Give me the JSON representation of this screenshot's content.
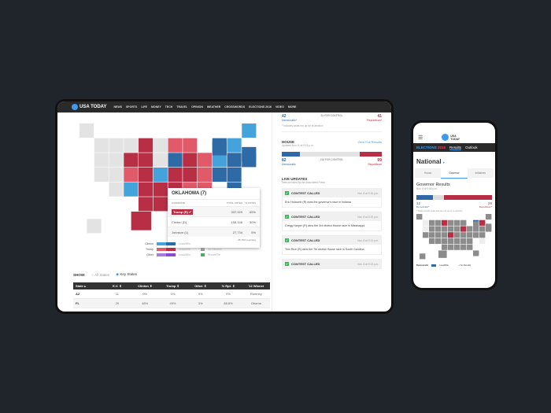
{
  "colors": {
    "trump_win": "#b72e45",
    "trump_lead": "#e05a6a",
    "clinton_win": "#2d6aa6",
    "clinton_lead": "#45a3dc",
    "none": "#e3e3e3",
    "other": "#8a4bd1",
    "runoff": "#3fb55d"
  },
  "nav": {
    "logo": "USA TODAY",
    "items": [
      "NEWS",
      "SPORTS",
      "LIFE",
      "MONEY",
      "TECH",
      "TRAVEL",
      "OPINION",
      "WEATHER",
      "CROSSWORDS",
      "ELECTIONS 2016",
      "VIDEO",
      "MORE"
    ]
  },
  "map": {
    "states": {
      "WA": "n",
      "OR": "n",
      "CA": "n",
      "NV": "n",
      "ID": "n",
      "MT": "n",
      "WY": "R",
      "UT": "n",
      "AZ": "n",
      "CO": "r",
      "NM": "d",
      "ND": "R",
      "SD": "R",
      "NE": "R",
      "KS": "R",
      "OK": "R",
      "TX": "R",
      "MN": "n",
      "IA": "n",
      "MO": "d",
      "AR": "R",
      "LA": "R",
      "WI": "r",
      "IL": "D",
      "MI": "r",
      "IN": "R",
      "OH": "r",
      "KY": "R",
      "TN": "R",
      "MS": "R",
      "AL": "R",
      "GA": "r",
      "FL": "r",
      "SC": "r",
      "NC": "r",
      "VA": "r",
      "WV": "R",
      "PA": "d",
      "NY": "D",
      "VT": "D",
      "NH": "d",
      "ME": "d",
      "MA": "D",
      "CT": "D",
      "NJ": "D",
      "DE": "D",
      "MD": "D",
      "RI": "D",
      "AK": "n",
      "HI": "n"
    }
  },
  "popup": {
    "title": "OKLAHOMA (7)",
    "headers": [
      "CANDIDATE",
      "TOTAL VOTES",
      "% VOTES"
    ],
    "rows": [
      [
        "Trump (R) ✔",
        "337,929",
        "65%"
      ],
      [
        "Clinton (D)",
        "155,148",
        "30%"
      ],
      [
        "Johnson (L)",
        "27,734",
        "5%"
      ]
    ],
    "reporting": "35.79% reporting"
  },
  "legend": {
    "rows": [
      {
        "label": "Clinton",
        "status": "Lead/Win"
      },
      {
        "label": "Trump",
        "status": "Lead/Win",
        "extra": "No Election"
      },
      {
        "label": "Other",
        "status": "Lead/Win",
        "extra": "Runoff/Tie"
      }
    ]
  },
  "show": {
    "label": "SHOW:",
    "options": [
      "All States",
      "Key States"
    ],
    "selected": "Key States"
  },
  "table": {
    "headers": [
      "State ▴",
      "E.V. ⇕",
      "Clinton ⇕",
      "Trump ⇕",
      "Other ⇕",
      "% Rpt. ⇕",
      "'12 Winner"
    ],
    "rows": [
      [
        "AZ",
        "11",
        "0%",
        "0%",
        "0%",
        "0%",
        "Romney"
      ],
      [
        "FL",
        "29",
        "48%",
        "49%",
        "3%",
        "88.8%",
        "Obama"
      ]
    ]
  },
  "senate": {
    "dem": "42",
    "dem_label": "Democratic*",
    "control": "51 FOR CONTROL",
    "rep": "41",
    "rep_label": "Republican*",
    "note": "* Includes seats not up for re-election"
  },
  "house": {
    "title": "HOUSE",
    "link": "View Full Results",
    "updated": "Updated Nov. 8, at 9:15 p.m.",
    "dem": "82",
    "dem_label": "Democratic",
    "control": "218 FOR CONTROL",
    "rep": "99",
    "rep_label": "Republican",
    "dem_pct": 18,
    "rep_pct": 22
  },
  "live": {
    "title": "LIVE UPDATES",
    "source": "Data provided by the Associated Press",
    "items": [
      {
        "tag": "CONTEST CALLED",
        "time": "Nov. 8 at 9:16 p.m.",
        "text": "Eric Holcomb (R) wins the governor's race in Indiana"
      },
      {
        "tag": "CONTEST CALLED",
        "time": "Nov. 8 at 9:15 p.m.",
        "text": "Gregg Harper (R) wins the 3rd district House race in Mississippi"
      },
      {
        "tag": "CONTEST CALLED",
        "time": "Nov. 8 at 9:14 p.m.",
        "text": "Tom Rice (R) wins the 7th district House race in South Carolina"
      },
      {
        "tag": "CONTEST CALLED",
        "time": "Nov. 8 at 9:13 p.m.",
        "text": ""
      }
    ]
  },
  "phone": {
    "logo": "USA TODAY",
    "elections": "ELECTIONS",
    "year": "2016",
    "tabs": [
      "Results",
      "Outlook"
    ],
    "region": "National",
    "subtabs": [
      "House",
      "Governor",
      "Initiatives"
    ],
    "active_subtab": "Governor",
    "title": "Governor Results",
    "updated": "Nov. 8 at 9:56 p.m.",
    "dem": "12",
    "dem_label": "Democratic*",
    "rep": "29",
    "rep_label": "Republican*",
    "note": "* Totals include seats that are not up for re-election.",
    "legend": [
      "Democratic",
      "Lead/Win",
      "No Results"
    ]
  }
}
